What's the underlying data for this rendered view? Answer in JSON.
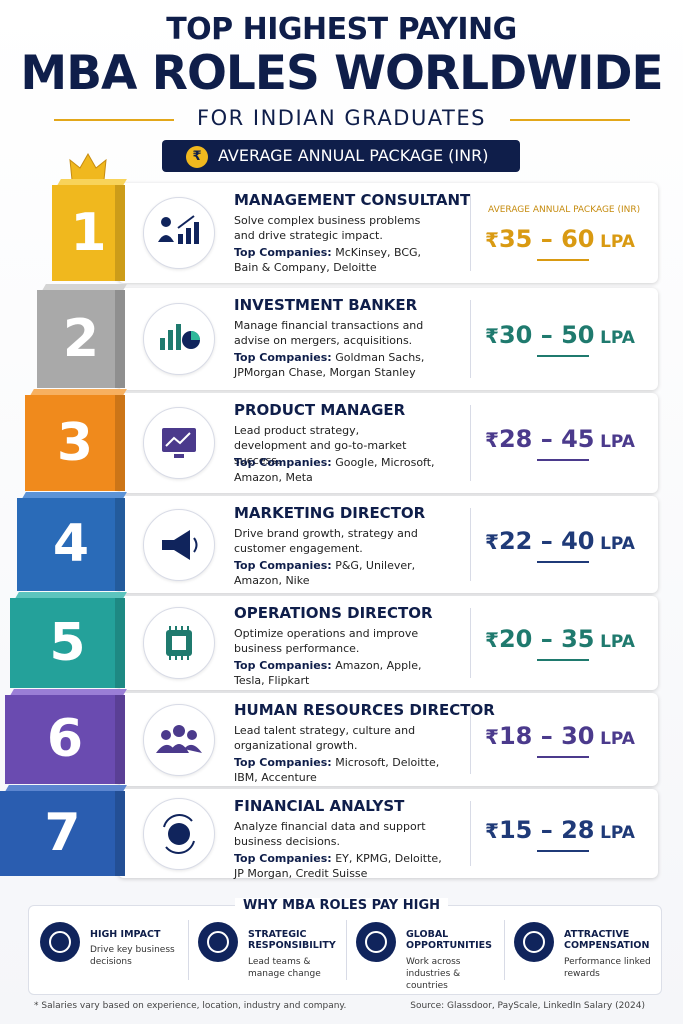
{
  "header": {
    "title_line1": "TOP HIGHEST PAYING",
    "title_line2": "MBA ROLES WORLDWIDE",
    "subtitle": "FOR INDIAN GRADUATES",
    "badge_icon": "₹",
    "badge": "AVERAGE ANNUAL PACKAGE (INR)"
  },
  "package_label": "AVERAGE ANNUAL PACKAGE (INR)",
  "companies_label": "Top Companies:",
  "currency": "₹",
  "unit": "LPA",
  "roles": [
    {
      "rank": "1",
      "title": "MANAGEMENT CONSULTANT",
      "description": "Solve complex business problems and drive strategic impact.",
      "companies": "McKinsey, BCG, Bain & Company, Deloitte",
      "range": "35 – 60"
    },
    {
      "rank": "2",
      "title": "INVESTMENT BANKER",
      "description": "Manage financial transactions and advise on mergers, acquisitions.",
      "companies": "Goldman Sachs, JPMorgan Chase, Morgan Stanley",
      "range": "30 – 50"
    },
    {
      "rank": "3",
      "title": "PRODUCT MANAGER",
      "description": "Lead product strategy, development and go-to-market success.",
      "companies": "Google, Microsoft, Amazon, Meta",
      "range": "28 – 45"
    },
    {
      "rank": "4",
      "title": "MARKETING DIRECTOR",
      "description": "Drive brand growth, strategy and customer engagement.",
      "companies": "P&G, Unilever, Amazon, Nike",
      "range": "22 – 40"
    },
    {
      "rank": "5",
      "title": "OPERATIONS DIRECTOR",
      "description": "Optimize operations and improve business performance.",
      "companies": "Amazon, Apple, Tesla, Flipkart",
      "range": "20 – 35"
    },
    {
      "rank": "6",
      "title": "HUMAN RESOURCES DIRECTOR",
      "description": "Lead talent strategy, culture and organizational growth.",
      "companies": "Microsoft, Deloitte, IBM, Accenture",
      "range": "18 – 30"
    },
    {
      "rank": "7",
      "title": "FINANCIAL ANALYST",
      "description": "Analyze financial data and support business decisions.",
      "companies": "EY, KPMG, Deloitte, JP Morgan, Credit Suisse",
      "range": "15 – 28"
    }
  ],
  "why": {
    "title": "WHY MBA ROLES PAY HIGH",
    "items": [
      {
        "title": "HIGH IMPACT",
        "text": "Drive key business decisions"
      },
      {
        "title": "STRATEGIC RESPONSIBILITY",
        "text": "Lead teams & manage change"
      },
      {
        "title": "GLOBAL OPPORTUNITIES",
        "text": "Work across industries & countries"
      },
      {
        "title": "ATTRACTIVE COMPENSATION",
        "text": "Performance linked rewards"
      }
    ]
  },
  "footer": {
    "note": "* Salaries vary based on experience, location, industry and company.",
    "source": "Source: Glassdoor, PayScale, LinkedIn Salary (2024)"
  }
}
